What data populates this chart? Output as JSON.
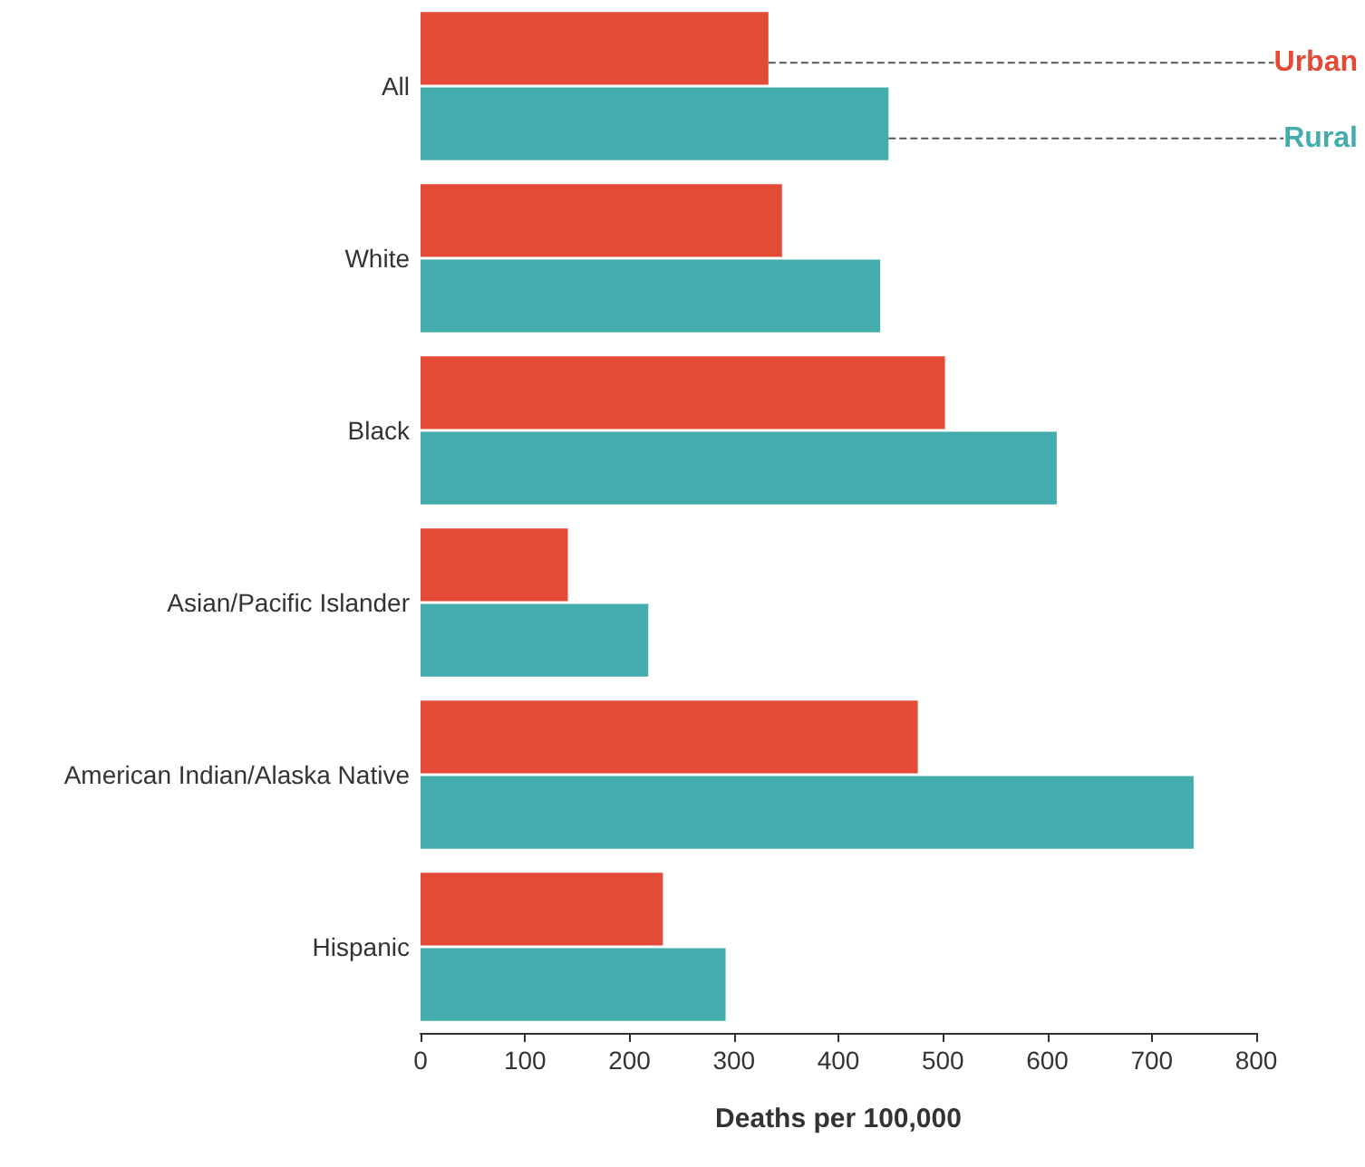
{
  "chart_data": {
    "type": "bar",
    "orientation": "horizontal",
    "xlabel": "Deaths per 100,000",
    "categories": [
      "All",
      "White",
      "Black",
      "Asian/Pacific Islander",
      "American Indian/Alaska Native",
      "Hispanic"
    ],
    "series": [
      {
        "name": "Urban",
        "color": "#e34b36",
        "values": [
          333,
          346,
          502,
          141,
          476,
          232
        ]
      },
      {
        "name": "Rural",
        "color": "#45acad",
        "values": [
          448,
          440,
          609,
          218,
          740,
          292
        ]
      }
    ],
    "xlim": [
      0,
      800
    ],
    "xticks": [
      0,
      100,
      200,
      300,
      400,
      500,
      600,
      700,
      800
    ],
    "grid": false
  }
}
